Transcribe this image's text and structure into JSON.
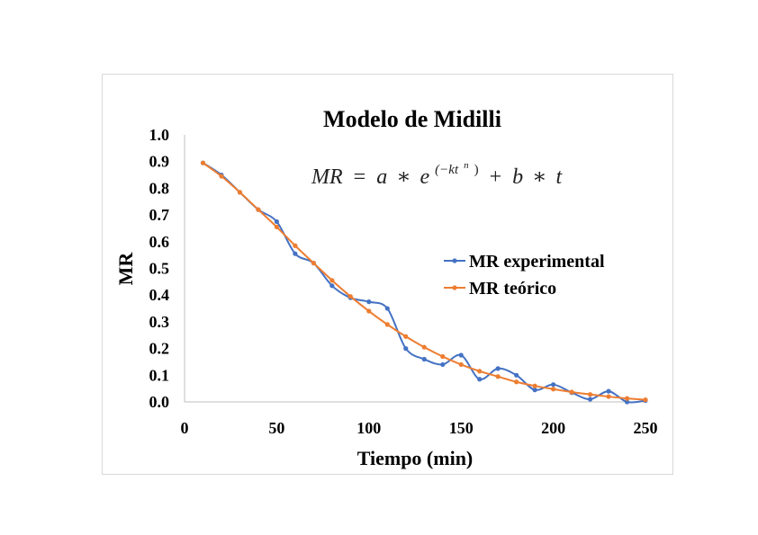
{
  "chart_data": {
    "type": "line",
    "title": "Modelo de Midilli",
    "formula": {
      "lhs": "MR",
      "eq": "=",
      "a": "a",
      "star": "∗",
      "e": "e",
      "exp": "(−kt",
      "exp_n": "n",
      "exp_close": ")",
      "plus": "+",
      "b": "b",
      "t": "t"
    },
    "xlabel": "Tiempo (min)",
    "ylabel": "MR",
    "xlim": [
      0,
      250
    ],
    "ylim": [
      0,
      1.0
    ],
    "xticks": [
      "0",
      "50",
      "100",
      "150",
      "200",
      "250"
    ],
    "xtick_values": [
      0,
      50,
      100,
      150,
      200,
      250
    ],
    "yticks": [
      "0.0",
      "0.1",
      "0.2",
      "0.3",
      "0.4",
      "0.5",
      "0.6",
      "0.7",
      "0.8",
      "0.9",
      "1.0"
    ],
    "ytick_values": [
      0,
      0.1,
      0.2,
      0.3,
      0.4,
      0.5,
      0.6,
      0.7,
      0.8,
      0.9,
      1.0
    ],
    "grid": false,
    "legend_position": "right",
    "series": [
      {
        "name": "MR experimental",
        "color": "#4472c4",
        "x": [
          10,
          20,
          30,
          40,
          50,
          60,
          70,
          80,
          90,
          100,
          110,
          120,
          130,
          140,
          150,
          160,
          170,
          180,
          190,
          200,
          210,
          220,
          230,
          240,
          250
        ],
        "y": [
          0.895,
          0.85,
          0.785,
          0.72,
          0.675,
          0.555,
          0.52,
          0.435,
          0.39,
          0.375,
          0.35,
          0.2,
          0.16,
          0.14,
          0.175,
          0.085,
          0.125,
          0.1,
          0.045,
          0.065,
          0.035,
          0.01,
          0.04,
          0.0,
          0.005
        ]
      },
      {
        "name": "MR teórico",
        "color": "#ed7d31",
        "x": [
          10,
          20,
          30,
          40,
          50,
          60,
          70,
          80,
          90,
          100,
          110,
          120,
          130,
          140,
          150,
          160,
          170,
          180,
          190,
          200,
          210,
          220,
          230,
          240,
          250
        ],
        "y": [
          0.895,
          0.845,
          0.785,
          0.72,
          0.655,
          0.585,
          0.52,
          0.455,
          0.395,
          0.34,
          0.29,
          0.245,
          0.205,
          0.17,
          0.14,
          0.115,
          0.095,
          0.075,
          0.06,
          0.048,
          0.037,
          0.028,
          0.02,
          0.013,
          0.008
        ]
      }
    ]
  }
}
